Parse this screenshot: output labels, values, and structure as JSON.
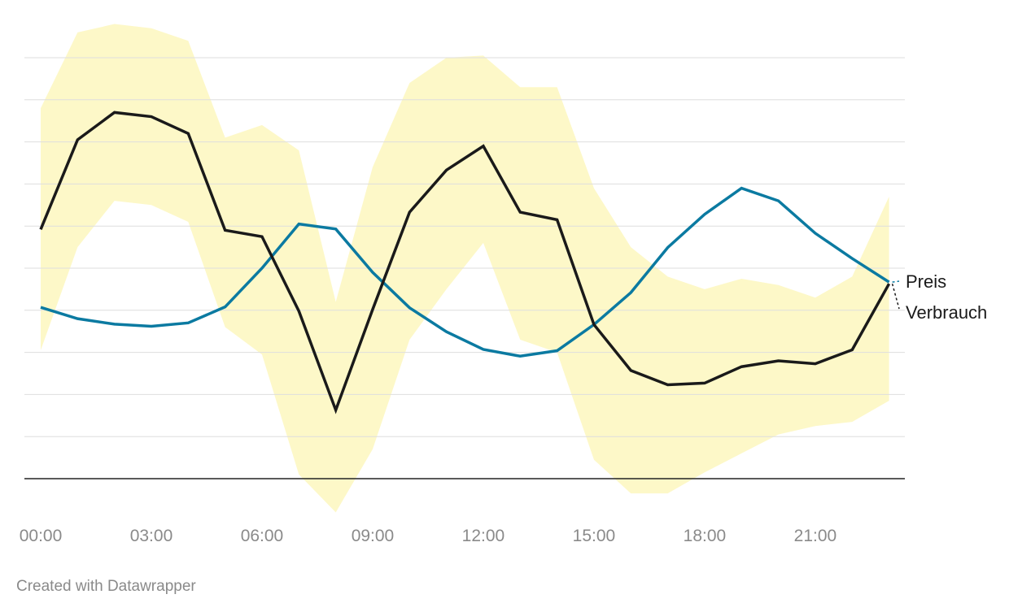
{
  "footer": {
    "credit": "Created with Datawrapper"
  },
  "chart_data": {
    "type": "line",
    "title": "",
    "xlabel": "",
    "ylabel": "",
    "x": [
      0,
      1,
      2,
      3,
      4,
      5,
      6,
      7,
      8,
      9,
      10,
      11,
      12,
      13,
      14,
      15,
      16,
      17,
      18,
      19,
      20,
      21,
      22,
      23
    ],
    "x_ticks": [
      {
        "value": 0,
        "label": "00:00"
      },
      {
        "value": 3,
        "label": "03:00"
      },
      {
        "value": 6,
        "label": "06:00"
      },
      {
        "value": 9,
        "label": "09:00"
      },
      {
        "value": 12,
        "label": "12:00"
      },
      {
        "value": 15,
        "label": "15:00"
      },
      {
        "value": 18,
        "label": "18:00"
      },
      {
        "value": 21,
        "label": "21:00"
      }
    ],
    "ylim": [
      0,
      10
    ],
    "y_gridlines": [
      1,
      2,
      3,
      4,
      5,
      6,
      7,
      8,
      9,
      10
    ],
    "y_tick_labels_visible": false,
    "grid": true,
    "band": {
      "color": "#fdf8c8",
      "upper": [
        8.8,
        10.6,
        10.8,
        10.7,
        10.4,
        8.1,
        8.4,
        7.8,
        4.2,
        7.4,
        9.4,
        10.0,
        10.05,
        9.3,
        9.3,
        6.9,
        5.5,
        4.8,
        4.5,
        4.75,
        4.6,
        4.3,
        4.8,
        6.7
      ],
      "lower": [
        3.05,
        5.5,
        6.6,
        6.5,
        6.1,
        3.6,
        2.95,
        0.1,
        -0.8,
        0.7,
        3.3,
        4.5,
        5.6,
        3.3,
        3.0,
        0.45,
        -0.35,
        -0.35,
        0.15,
        0.6,
        1.05,
        1.25,
        1.35,
        1.85
      ]
    },
    "series": [
      {
        "name": "Preis",
        "color": "#0b7aa1",
        "values": [
          4.07,
          3.8,
          3.67,
          3.62,
          3.7,
          4.08,
          5.0,
          6.05,
          5.93,
          4.9,
          4.06,
          3.49,
          3.07,
          2.91,
          3.04,
          3.66,
          4.42,
          5.49,
          6.28,
          6.9,
          6.6,
          5.83,
          5.23,
          4.67
        ]
      },
      {
        "name": "Verbrauch",
        "color": "#1a1a1a",
        "values": [
          5.92,
          8.05,
          8.7,
          8.6,
          8.2,
          5.9,
          5.75,
          3.98,
          1.63,
          4.02,
          6.33,
          7.33,
          7.9,
          6.33,
          6.15,
          3.66,
          2.57,
          2.23,
          2.27,
          2.66,
          2.8,
          2.73,
          3.06,
          4.63
        ]
      }
    ]
  }
}
